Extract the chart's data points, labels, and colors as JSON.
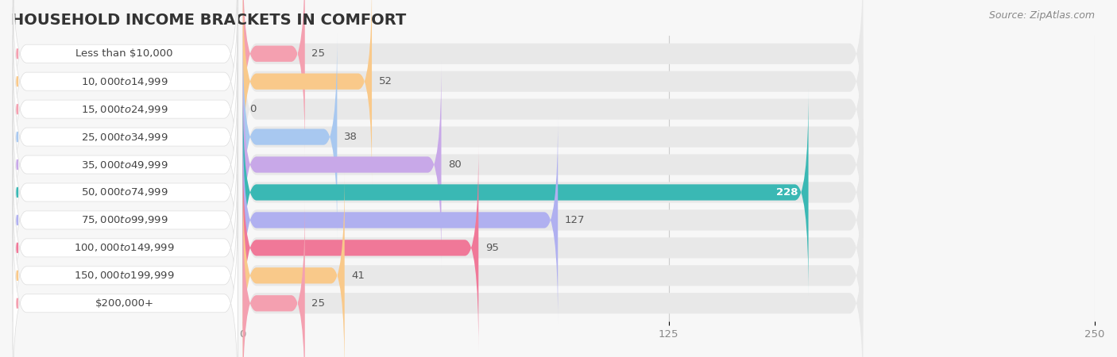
{
  "title": "HOUSEHOLD INCOME BRACKETS IN COMFORT",
  "source": "Source: ZipAtlas.com",
  "categories": [
    "Less than $10,000",
    "$10,000 to $14,999",
    "$15,000 to $24,999",
    "$25,000 to $34,999",
    "$35,000 to $49,999",
    "$50,000 to $74,999",
    "$75,000 to $99,999",
    "$100,000 to $149,999",
    "$150,000 to $199,999",
    "$200,000+"
  ],
  "values": [
    25,
    52,
    0,
    38,
    80,
    228,
    127,
    95,
    41,
    25
  ],
  "bar_colors": [
    "#f4a0b0",
    "#f9c98a",
    "#f4a0b0",
    "#a8c8f0",
    "#c8a8e8",
    "#3ab8b4",
    "#b0b0f0",
    "#f07898",
    "#f9c98a",
    "#f4a0b0"
  ],
  "bg_color": "#f7f7f7",
  "bar_bg_color": "#e8e8e8",
  "xlim": [
    0,
    250
  ],
  "xticks": [
    0,
    125,
    250
  ],
  "title_fontsize": 14,
  "label_fontsize": 9.5,
  "value_fontsize": 9.5,
  "source_fontsize": 9
}
